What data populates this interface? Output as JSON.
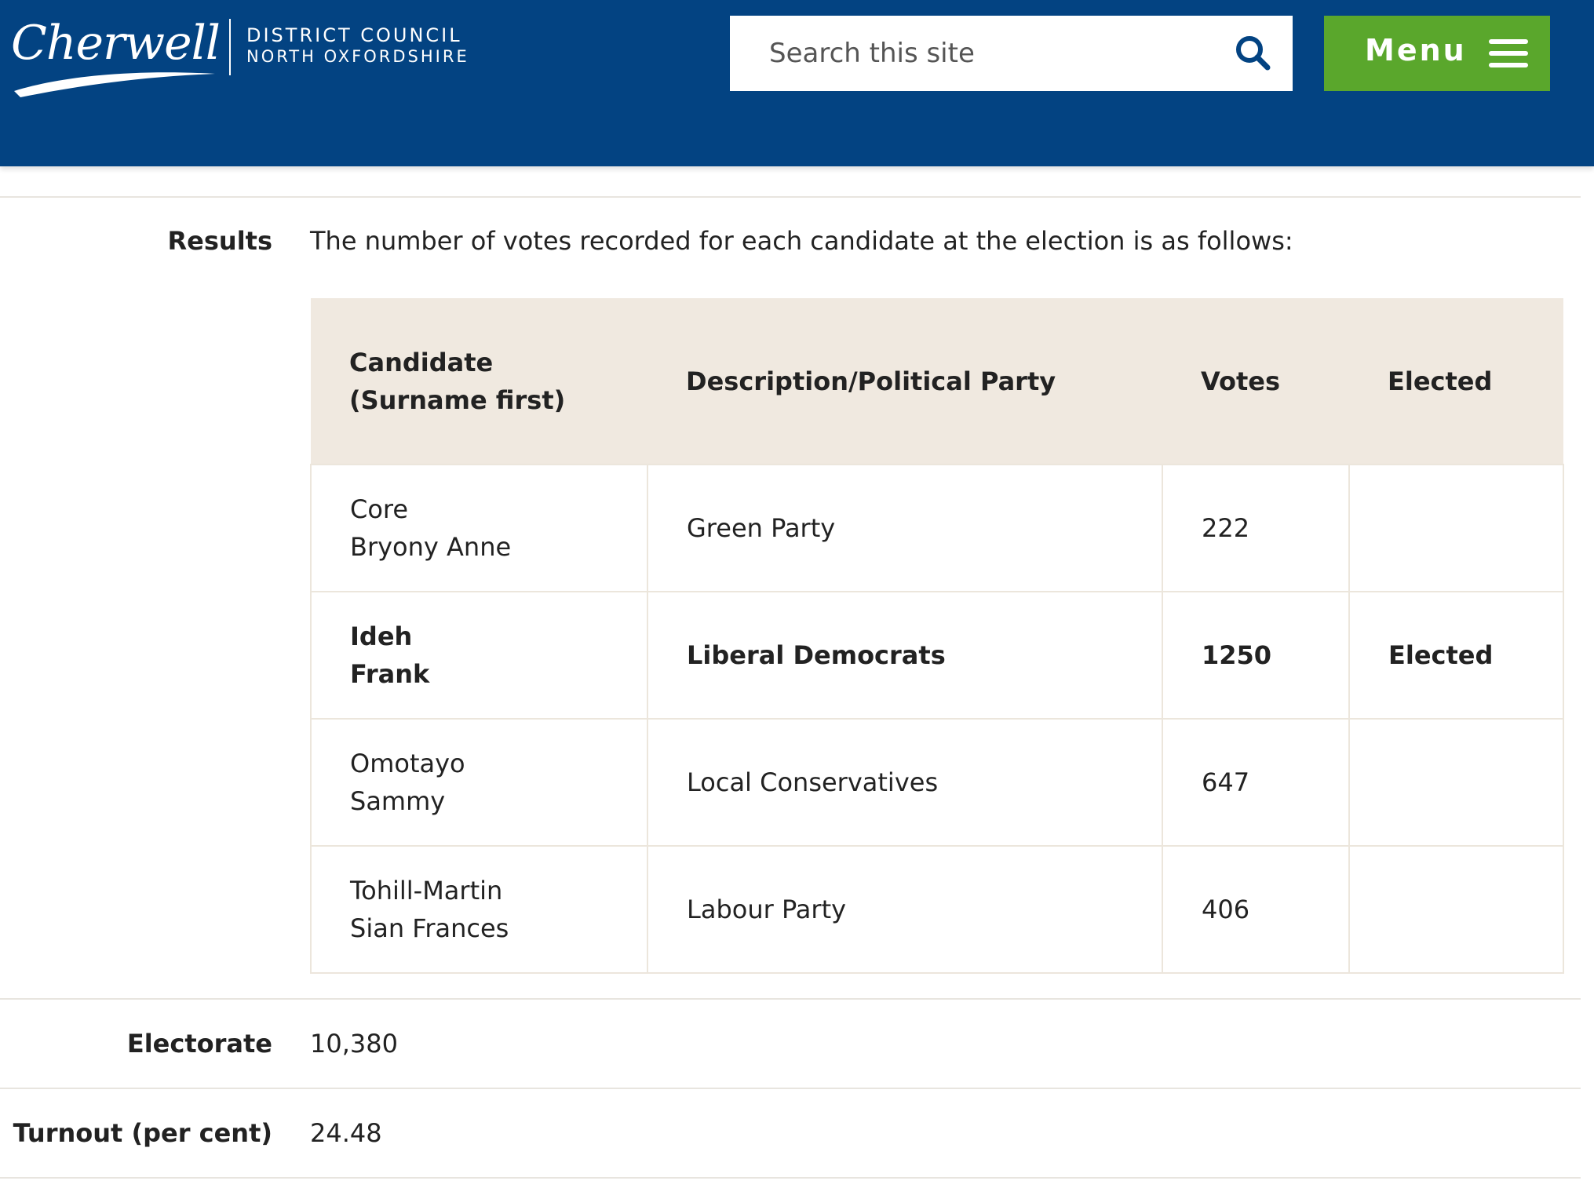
{
  "header": {
    "logo_text": "Cherwell",
    "council_line1": "DISTRICT COUNCIL",
    "council_line2": "NORTH OXFORDSHIRE",
    "search_placeholder": "Search this site",
    "search_icon": "search-icon",
    "menu_label": "Menu",
    "menu_icon": "hamburger-icon",
    "brand_color": "#034382",
    "menu_color": "#5aa72c"
  },
  "results": {
    "label": "Results",
    "intro": "The number of votes recorded for each candidate at the election is as follows:",
    "columns": {
      "candidate_line1": "Candidate",
      "candidate_line2": "(Surname first)",
      "party": "Description/Political Party",
      "votes": "Votes",
      "elected": "Elected"
    },
    "rows": [
      {
        "surname": "Core",
        "forenames": "Bryony Anne",
        "party": "Green Party",
        "votes": "222",
        "elected": ""
      },
      {
        "surname": "Ideh",
        "forenames": "Frank",
        "party": "Liberal Democrats",
        "votes": "1250",
        "elected": "Elected"
      },
      {
        "surname": "Omotayo",
        "forenames": "Sammy",
        "party": "Local Conservatives",
        "votes": "647",
        "elected": ""
      },
      {
        "surname": "Tohill-Martin",
        "forenames": "Sian Frances",
        "party": "Labour Party",
        "votes": "406",
        "elected": ""
      }
    ],
    "header_bg": "#f0e9e0"
  },
  "electorate": {
    "label": "Electorate",
    "value": "10,380"
  },
  "turnout": {
    "label": "Turnout (per cent)",
    "value": "24.48"
  }
}
